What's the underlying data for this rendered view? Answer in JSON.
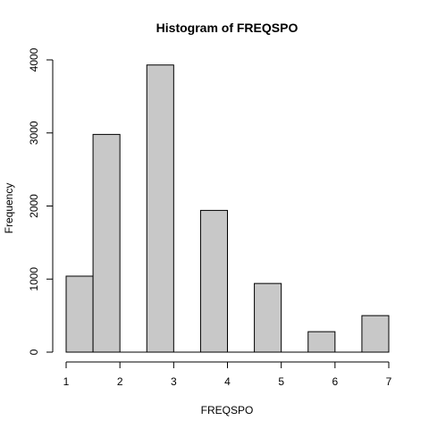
{
  "chart_data": {
    "type": "bar",
    "title": "Histogram of FREQSPO",
    "xlabel": "FREQSPO",
    "ylabel": "Frequency",
    "bins": [
      {
        "x0": 1.0,
        "x1": 1.5,
        "value": 1040
      },
      {
        "x0": 1.5,
        "x1": 2.0,
        "value": 2980
      },
      {
        "x0": 2.0,
        "x1": 2.5,
        "value": 0
      },
      {
        "x0": 2.5,
        "x1": 3.0,
        "value": 3930
      },
      {
        "x0": 3.0,
        "x1": 3.5,
        "value": 0
      },
      {
        "x0": 3.5,
        "x1": 4.0,
        "value": 1940
      },
      {
        "x0": 4.0,
        "x1": 4.5,
        "value": 0
      },
      {
        "x0": 4.5,
        "x1": 5.0,
        "value": 940
      },
      {
        "x0": 5.0,
        "x1": 5.5,
        "value": 0
      },
      {
        "x0": 5.5,
        "x1": 6.0,
        "value": 280
      },
      {
        "x0": 6.0,
        "x1": 6.5,
        "value": 0
      },
      {
        "x0": 6.5,
        "x1": 7.0,
        "value": 500
      }
    ],
    "xlim": [
      1,
      7
    ],
    "ylim": [
      0,
      4000
    ],
    "xticks": [
      1,
      2,
      3,
      4,
      5,
      6,
      7
    ],
    "yticks": [
      0,
      1000,
      2000,
      3000,
      4000
    ],
    "bar_color": "#c8c8c8",
    "edge_color": "#000000",
    "grid": false,
    "legend": "none"
  }
}
